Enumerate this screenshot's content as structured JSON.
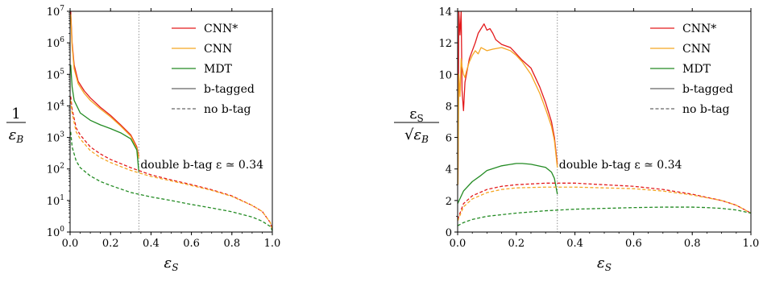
{
  "chart_data": [
    {
      "type": "line",
      "xlabel": "ε_S",
      "ylabel": "1/ε_B",
      "yscale": "log",
      "xlim": [
        0,
        1
      ],
      "ylim": [
        1,
        10000000
      ],
      "xticks": [
        "0.0",
        "0.2",
        "0.4",
        "0.6",
        "0.8",
        "1.0"
      ],
      "yticks": [
        "10^0",
        "10^1",
        "10^2",
        "10^3",
        "10^4",
        "10^5",
        "10^6",
        "10^7"
      ],
      "legend": {
        "placement": "top-right",
        "entries": [
          "CNN*",
          "CNN",
          "MDT",
          "b-tagged",
          "no b-tag"
        ]
      },
      "vline_x": 0.34,
      "annotation": "double b-tag ε ≃  0.34",
      "series": [
        {
          "name": "CNN*",
          "style": "solid",
          "color": "#e31a1c",
          "x": [
            0.003,
            0.01,
            0.02,
            0.04,
            0.07,
            0.1,
            0.15,
            0.2,
            0.25,
            0.3,
            0.33,
            0.34
          ],
          "y": [
            10000000,
            1000000,
            200000,
            60000,
            30000,
            18000,
            9000,
            5000,
            2500,
            1200,
            500,
            250
          ]
        },
        {
          "name": "CNN",
          "style": "solid",
          "color": "#f5a623",
          "x": [
            0.003,
            0.01,
            0.02,
            0.04,
            0.07,
            0.1,
            0.15,
            0.2,
            0.25,
            0.3,
            0.33,
            0.34
          ],
          "y": [
            8000000,
            800000,
            150000,
            50000,
            25000,
            15000,
            8000,
            4500,
            2300,
            1100,
            450,
            220
          ]
        },
        {
          "name": "MDT",
          "style": "solid",
          "color": "#238b23",
          "x": [
            0.003,
            0.01,
            0.02,
            0.05,
            0.1,
            0.15,
            0.2,
            0.25,
            0.3,
            0.33,
            0.34
          ],
          "y": [
            200000,
            40000,
            15000,
            6000,
            3500,
            2500,
            1900,
            1400,
            900,
            400,
            80
          ]
        },
        {
          "name": "CNN* no b-tag",
          "style": "dashed",
          "color": "#e31a1c",
          "x": [
            0.003,
            0.01,
            0.03,
            0.05,
            0.1,
            0.15,
            0.2,
            0.3,
            0.4,
            0.5,
            0.6,
            0.7,
            0.8,
            0.9,
            0.95,
            0.99,
            1.0
          ],
          "y": [
            20000,
            8000,
            2000,
            1200,
            500,
            300,
            200,
            110,
            65,
            45,
            32,
            22,
            14,
            7,
            4.5,
            2,
            1.2
          ]
        },
        {
          "name": "CNN no b-tag",
          "style": "dashed",
          "color": "#f5a623",
          "x": [
            0.003,
            0.01,
            0.03,
            0.05,
            0.1,
            0.15,
            0.2,
            0.3,
            0.4,
            0.5,
            0.6,
            0.7,
            0.8,
            0.9,
            0.95,
            0.99,
            1.0
          ],
          "y": [
            15000,
            6000,
            1500,
            900,
            380,
            230,
            160,
            90,
            58,
            42,
            30,
            21,
            13.5,
            7,
            4.5,
            2,
            1.2
          ]
        },
        {
          "name": "MDT no b-tag",
          "style": "dashed",
          "color": "#238b23",
          "x": [
            0.003,
            0.01,
            0.03,
            0.05,
            0.1,
            0.15,
            0.2,
            0.3,
            0.4,
            0.5,
            0.6,
            0.7,
            0.8,
            0.9,
            0.95,
            0.99,
            1.0
          ],
          "y": [
            1500,
            500,
            180,
            110,
            60,
            40,
            30,
            18,
            13,
            10,
            7.5,
            5.8,
            4.4,
            3,
            2.2,
            1.5,
            1.1
          ]
        }
      ]
    },
    {
      "type": "line",
      "xlabel": "ε_S",
      "ylabel": "ε_S/√ε_B",
      "xlim": [
        0,
        1
      ],
      "ylim": [
        0,
        14
      ],
      "xticks": [
        "0.0",
        "0.2",
        "0.4",
        "0.6",
        "0.8",
        "1.0"
      ],
      "yticks": [
        "0",
        "2",
        "4",
        "6",
        "8",
        "10",
        "12",
        "14"
      ],
      "legend": {
        "placement": "top-right",
        "entries": [
          "CNN*",
          "CNN",
          "MDT",
          "b-tagged",
          "no b-tag"
        ]
      },
      "vline_x": 0.34,
      "annotation": "double b-tag ε ≃  0.34",
      "series": [
        {
          "name": "CNN*",
          "style": "solid",
          "color": "#e31a1c",
          "x": [
            0.001,
            0.004,
            0.008,
            0.012,
            0.015,
            0.02,
            0.025,
            0.03,
            0.04,
            0.05,
            0.06,
            0.07,
            0.08,
            0.09,
            0.1,
            0.11,
            0.12,
            0.13,
            0.15,
            0.18,
            0.2,
            0.22,
            0.25,
            0.28,
            0.3,
            0.32,
            0.33,
            0.34
          ],
          "y": [
            3,
            14,
            12.5,
            14,
            9,
            7.7,
            9.5,
            10,
            11,
            11.5,
            12,
            12.6,
            12.9,
            13.2,
            12.8,
            12.9,
            12.6,
            12.2,
            11.9,
            11.7,
            11.3,
            10.9,
            10.4,
            9.2,
            8.2,
            7,
            6,
            4.3
          ]
        },
        {
          "name": "CNN",
          "style": "solid",
          "color": "#f5a623",
          "x": [
            0.001,
            0.004,
            0.008,
            0.012,
            0.015,
            0.02,
            0.025,
            0.03,
            0.04,
            0.05,
            0.06,
            0.07,
            0.08,
            0.09,
            0.1,
            0.12,
            0.15,
            0.18,
            0.2,
            0.22,
            0.25,
            0.28,
            0.3,
            0.32,
            0.33,
            0.34
          ],
          "y": [
            3,
            10,
            8.6,
            11,
            10.5,
            10,
            9.8,
            10.2,
            10.8,
            11.2,
            11.5,
            11.3,
            11.7,
            11.6,
            11.5,
            11.6,
            11.7,
            11.5,
            11.2,
            10.8,
            10,
            8.8,
            7.8,
            6.7,
            5.8,
            4.1
          ]
        },
        {
          "name": "MDT",
          "style": "solid",
          "color": "#238b23",
          "x": [
            0.0,
            0.02,
            0.05,
            0.08,
            0.1,
            0.15,
            0.2,
            0.22,
            0.25,
            0.3,
            0.32,
            0.33,
            0.34
          ],
          "y": [
            1.8,
            2.6,
            3.2,
            3.6,
            3.9,
            4.2,
            4.35,
            4.35,
            4.3,
            4.1,
            3.8,
            3.4,
            2.4
          ]
        },
        {
          "name": "CNN* no b-tag",
          "style": "dashed",
          "color": "#e31a1c",
          "x": [
            0.0,
            0.02,
            0.05,
            0.1,
            0.15,
            0.2,
            0.3,
            0.4,
            0.5,
            0.6,
            0.7,
            0.8,
            0.9,
            0.95,
            1.0
          ],
          "y": [
            0.8,
            1.8,
            2.3,
            2.7,
            2.9,
            3.0,
            3.1,
            3.1,
            3.0,
            2.9,
            2.7,
            2.4,
            2.0,
            1.7,
            1.2
          ]
        },
        {
          "name": "CNN no b-tag",
          "style": "dashed",
          "color": "#f5a623",
          "x": [
            0.0,
            0.02,
            0.05,
            0.1,
            0.15,
            0.2,
            0.3,
            0.4,
            0.5,
            0.6,
            0.7,
            0.8,
            0.9,
            0.95,
            1.0
          ],
          "y": [
            0.7,
            1.6,
            2.1,
            2.5,
            2.7,
            2.8,
            2.85,
            2.85,
            2.8,
            2.75,
            2.6,
            2.35,
            2.0,
            1.7,
            1.2
          ]
        },
        {
          "name": "MDT no b-tag",
          "style": "dashed",
          "color": "#238b23",
          "x": [
            0.0,
            0.02,
            0.05,
            0.1,
            0.2,
            0.3,
            0.4,
            0.5,
            0.6,
            0.7,
            0.8,
            0.85,
            0.9,
            0.95,
            1.0
          ],
          "y": [
            0.4,
            0.6,
            0.8,
            1.0,
            1.2,
            1.35,
            1.45,
            1.5,
            1.55,
            1.58,
            1.58,
            1.55,
            1.5,
            1.4,
            1.2
          ]
        }
      ]
    }
  ]
}
